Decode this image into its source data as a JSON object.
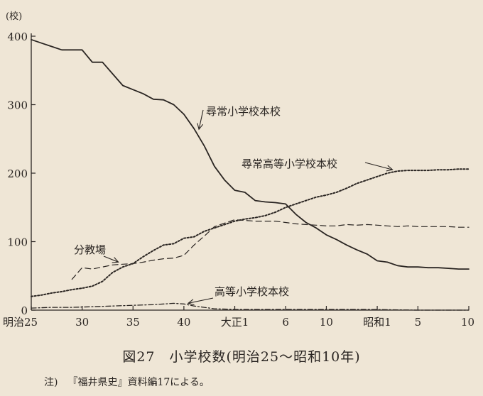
{
  "caption": "図27　小学校数(明治25〜昭和10年)",
  "note": {
    "prefix": "注)",
    "text": "『福井県史』資料編17による。"
  },
  "chart_data": {
    "type": "line",
    "ylabel": "(校)",
    "yticks": [
      0,
      100,
      200,
      300,
      400
    ],
    "ylim": [
      0,
      400
    ],
    "xlim": [
      1892,
      1935
    ],
    "xticks": [
      {
        "x": 1892,
        "label": "明治25"
      },
      {
        "x": 1897,
        "label": "30"
      },
      {
        "x": 1902,
        "label": "35"
      },
      {
        "x": 1907,
        "label": "40"
      },
      {
        "x": 1912,
        "label": "大正1"
      },
      {
        "x": 1917,
        "label": "6"
      },
      {
        "x": 1921,
        "label": "10"
      },
      {
        "x": 1926,
        "label": "昭和1"
      },
      {
        "x": 1930,
        "label": "5"
      },
      {
        "x": 1935,
        "label": "10"
      }
    ],
    "series": [
      {
        "name": "尋常小学校本校",
        "style": "solid",
        "color": "#2a2522",
        "x": [
          1892,
          1893,
          1894,
          1895,
          1896,
          1897,
          1898,
          1899,
          1900,
          1901,
          1902,
          1903,
          1904,
          1905,
          1906,
          1907,
          1908,
          1909,
          1910,
          1911,
          1912,
          1913,
          1914,
          1915,
          1916,
          1917,
          1918,
          1919,
          1920,
          1921,
          1922,
          1923,
          1924,
          1925,
          1926,
          1927,
          1928,
          1929,
          1930,
          1931,
          1932,
          1933,
          1934,
          1935
        ],
        "values": [
          395,
          390,
          385,
          380,
          380,
          380,
          362,
          362,
          345,
          328,
          322,
          316,
          308,
          307,
          300,
          286,
          265,
          240,
          210,
          190,
          175,
          172,
          160,
          158,
          157,
          155,
          140,
          128,
          120,
          110,
          103,
          95,
          88,
          82,
          72,
          70,
          65,
          63,
          63,
          62,
          62,
          61,
          60,
          60
        ]
      },
      {
        "name": "尋常高等小学校本校",
        "style": "dotted",
        "color": "#2a2522",
        "x": [
          1892,
          1893,
          1894,
          1895,
          1896,
          1897,
          1898,
          1899,
          1900,
          1901,
          1902,
          1903,
          1904,
          1905,
          1906,
          1907,
          1908,
          1909,
          1910,
          1911,
          1912,
          1913,
          1914,
          1915,
          1916,
          1917,
          1918,
          1919,
          1920,
          1921,
          1922,
          1923,
          1924,
          1925,
          1926,
          1927,
          1928,
          1929,
          1930,
          1931,
          1932,
          1933,
          1934,
          1935
        ],
        "values": [
          20,
          22,
          25,
          27,
          30,
          32,
          35,
          42,
          55,
          63,
          68,
          78,
          87,
          95,
          97,
          105,
          107,
          115,
          120,
          125,
          130,
          133,
          135,
          138,
          143,
          150,
          155,
          160,
          165,
          168,
          172,
          178,
          185,
          190,
          195,
          200,
          203,
          204,
          204,
          204,
          205,
          205,
          206,
          206
        ]
      },
      {
        "name": "分教場",
        "style": "dashed",
        "color": "#2a2522",
        "x": [
          1896,
          1897,
          1898,
          1899,
          1900,
          1901,
          1902,
          1903,
          1904,
          1905,
          1906,
          1907,
          1908,
          1909,
          1910,
          1911,
          1912,
          1913,
          1914,
          1915,
          1916,
          1917,
          1918,
          1919,
          1920,
          1921,
          1922,
          1923,
          1924,
          1925,
          1926,
          1927,
          1928,
          1929,
          1930,
          1931,
          1932,
          1933,
          1934,
          1935
        ],
        "values": [
          45,
          62,
          60,
          63,
          66,
          67,
          68,
          70,
          73,
          75,
          76,
          80,
          95,
          108,
          122,
          127,
          132,
          131,
          130,
          130,
          130,
          128,
          126,
          125,
          124,
          123,
          123,
          125,
          124,
          125,
          124,
          123,
          122,
          123,
          122,
          122,
          122,
          122,
          121,
          121
        ]
      },
      {
        "name": "高等小学校本校",
        "style": "dashdot",
        "color": "#2a2522",
        "x": [
          1892,
          1894,
          1896,
          1898,
          1900,
          1902,
          1904,
          1906,
          1907,
          1908,
          1909,
          1910,
          1912,
          1915,
          1920,
          1925,
          1930,
          1935
        ],
        "values": [
          3,
          4,
          4,
          5,
          6,
          7,
          8,
          10,
          9,
          6,
          4,
          2,
          1,
          1,
          1,
          1,
          0,
          0
        ]
      }
    ]
  },
  "annotations": [
    {
      "text": "尋常小学校本校",
      "series": 0
    },
    {
      "text": "尋常高等小学校本校",
      "series": 1
    },
    {
      "text": "分教場",
      "series": 2
    },
    {
      "text": "高等小学校本校",
      "series": 3
    }
  ]
}
